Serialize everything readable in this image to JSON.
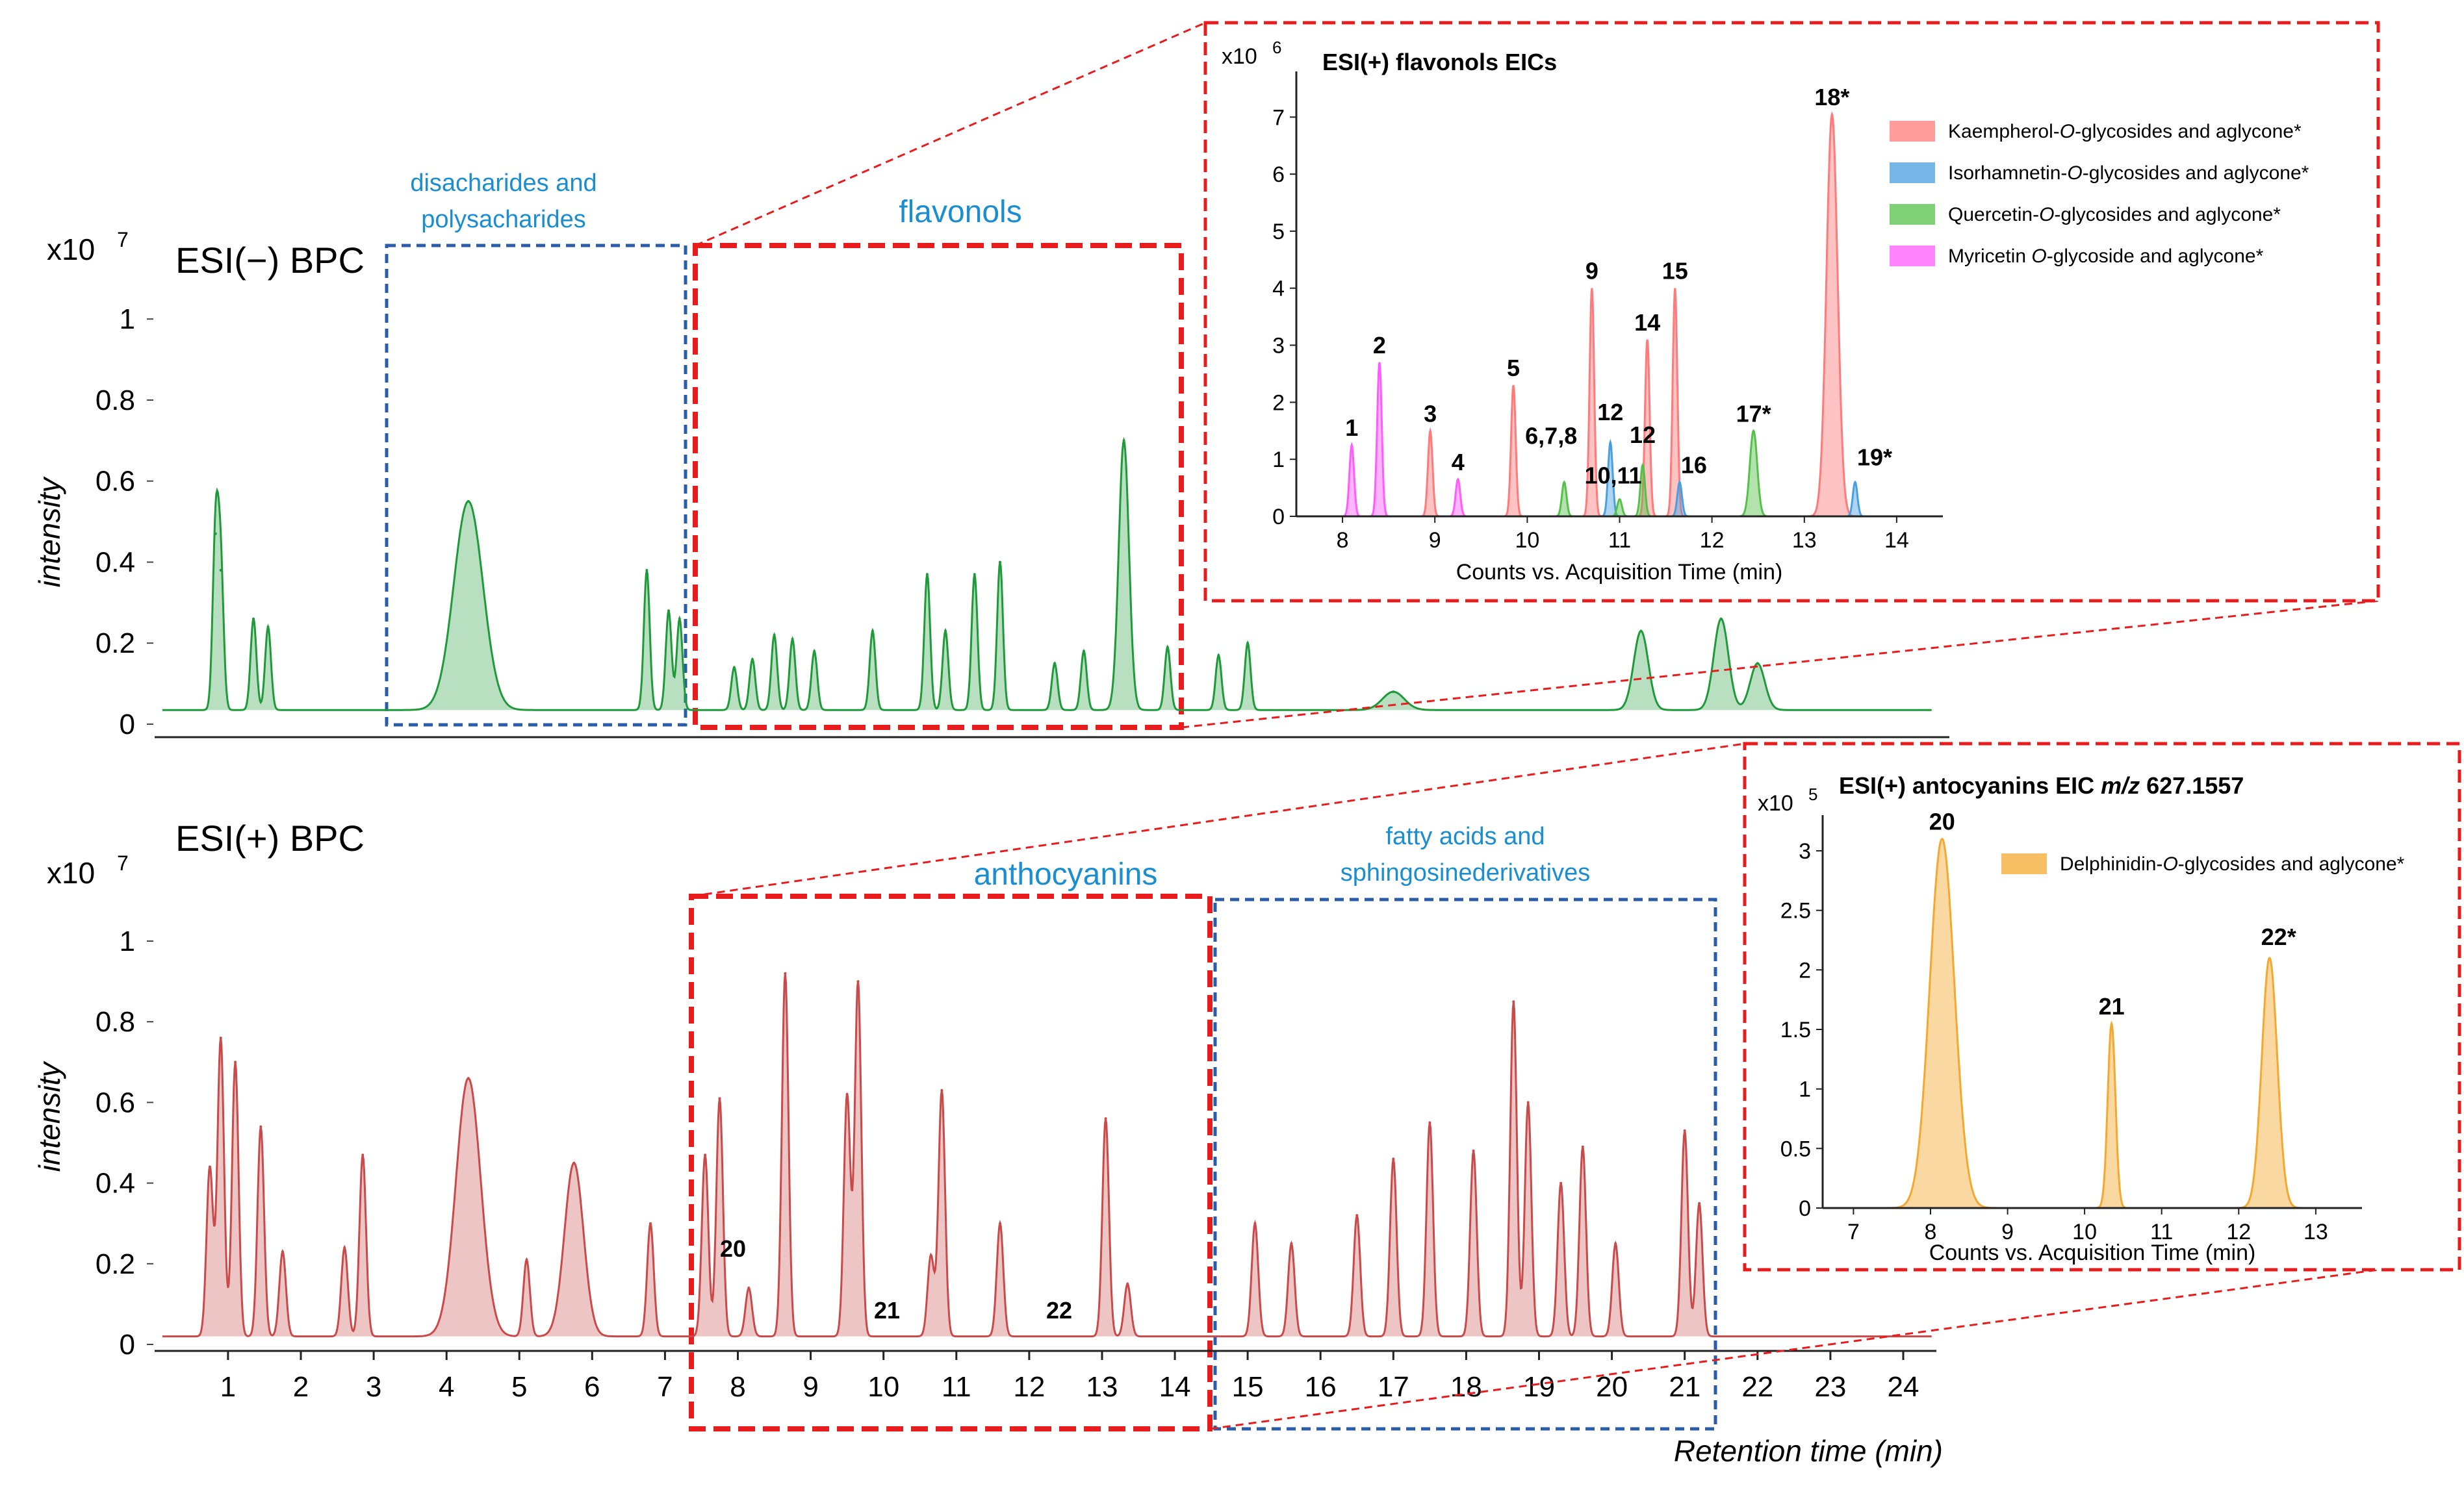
{
  "main": {
    "panel_neg_label": "ESI(−) BPC",
    "panel_pos_label": "ESI(+) BPC",
    "scale_neg": "x10",
    "scale_neg_exp": "7",
    "scale_pos": "x10",
    "scale_pos_exp": "7",
    "ylabel": "intensity",
    "xlabel": "Retention time (min)",
    "box_disacch_line1": "disacharides and",
    "box_disacch_line2": "polysacharides",
    "box_flavonols": "flavonols",
    "box_anthocyanins": "anthocyanins",
    "box_fatty_line1": "fatty acids and",
    "box_fatty_line2": "sphingosinederivatives",
    "peak_label_20": "20",
    "peak_label_21": "21",
    "peak_label_22": "22"
  },
  "chart_data": [
    {
      "type": "area",
      "title": "ESI(−) BPC",
      "ylabel": "intensity",
      "y_scale": "x10^7",
      "xlim": [
        0.1,
        24.5
      ],
      "ylim": [
        0,
        1.05
      ],
      "y_ticks": [
        "0",
        "0.2",
        "0.4",
        "0.6",
        "0.8",
        "1"
      ],
      "baseline": 0.035,
      "color": "#1f9a3a",
      "peaks": [
        {
          "x": 0.83,
          "y": 0.47
        },
        {
          "x": 0.9,
          "y": 0.38
        },
        {
          "x": 1.35,
          "y": 0.26
        },
        {
          "x": 1.55,
          "y": 0.24
        },
        {
          "x": 4.3,
          "y": 0.55
        },
        {
          "x": 6.75,
          "y": 0.38
        },
        {
          "x": 7.05,
          "y": 0.28
        },
        {
          "x": 7.2,
          "y": 0.26
        },
        {
          "x": 7.95,
          "y": 0.14
        },
        {
          "x": 8.2,
          "y": 0.16
        },
        {
          "x": 8.5,
          "y": 0.22
        },
        {
          "x": 8.75,
          "y": 0.21
        },
        {
          "x": 9.05,
          "y": 0.18
        },
        {
          "x": 9.85,
          "y": 0.23
        },
        {
          "x": 10.6,
          "y": 0.37
        },
        {
          "x": 10.85,
          "y": 0.23
        },
        {
          "x": 11.25,
          "y": 0.37
        },
        {
          "x": 11.6,
          "y": 0.4
        },
        {
          "x": 12.35,
          "y": 0.15
        },
        {
          "x": 12.75,
          "y": 0.18
        },
        {
          "x": 13.3,
          "y": 0.7
        },
        {
          "x": 13.9,
          "y": 0.19
        },
        {
          "x": 14.6,
          "y": 0.17
        },
        {
          "x": 15.0,
          "y": 0.2
        },
        {
          "x": 17.0,
          "y": 0.08
        },
        {
          "x": 20.4,
          "y": 0.23
        },
        {
          "x": 21.5,
          "y": 0.26
        },
        {
          "x": 22.0,
          "y": 0.15
        }
      ]
    },
    {
      "type": "area",
      "title": "ESI(+) BPC",
      "ylabel": "intensity",
      "xlabel": "Retention time (min)",
      "y_scale": "x10^7",
      "xlim": [
        0.1,
        24.5
      ],
      "ylim": [
        0,
        1.05
      ],
      "x_ticks": [
        1,
        2,
        3,
        4,
        5,
        6,
        7,
        8,
        9,
        10,
        11,
        12,
        13,
        14,
        15,
        16,
        17,
        18,
        19,
        20,
        21,
        22,
        23,
        24
      ],
      "y_ticks": [
        "0",
        "0.2",
        "0.4",
        "0.6",
        "0.8",
        "1"
      ],
      "baseline": 0.02,
      "color": "#c94a4a",
      "peaks": [
        {
          "x": 0.75,
          "y": 0.44
        },
        {
          "x": 0.9,
          "y": 0.76
        },
        {
          "x": 1.1,
          "y": 0.7
        },
        {
          "x": 1.45,
          "y": 0.54
        },
        {
          "x": 1.75,
          "y": 0.23
        },
        {
          "x": 2.6,
          "y": 0.24
        },
        {
          "x": 2.85,
          "y": 0.47
        },
        {
          "x": 4.3,
          "y": 0.66
        },
        {
          "x": 5.1,
          "y": 0.21
        },
        {
          "x": 5.75,
          "y": 0.45
        },
        {
          "x": 6.8,
          "y": 0.3
        },
        {
          "x": 7.55,
          "y": 0.47
        },
        {
          "x": 7.75,
          "y": 0.61
        },
        {
          "x": 8.15,
          "y": 0.14
        },
        {
          "x": 8.65,
          "y": 0.92
        },
        {
          "x": 9.5,
          "y": 0.62
        },
        {
          "x": 9.65,
          "y": 0.9
        },
        {
          "x": 10.65,
          "y": 0.22
        },
        {
          "x": 10.8,
          "y": 0.63
        },
        {
          "x": 11.6,
          "y": 0.3
        },
        {
          "x": 13.05,
          "y": 0.56
        },
        {
          "x": 13.35,
          "y": 0.15
        },
        {
          "x": 15.1,
          "y": 0.3
        },
        {
          "x": 15.6,
          "y": 0.25
        },
        {
          "x": 16.5,
          "y": 0.32
        },
        {
          "x": 17.0,
          "y": 0.46
        },
        {
          "x": 17.5,
          "y": 0.55
        },
        {
          "x": 18.1,
          "y": 0.48
        },
        {
          "x": 18.65,
          "y": 0.85
        },
        {
          "x": 18.85,
          "y": 0.6
        },
        {
          "x": 19.3,
          "y": 0.4
        },
        {
          "x": 19.6,
          "y": 0.49
        },
        {
          "x": 20.05,
          "y": 0.25
        },
        {
          "x": 21.0,
          "y": 0.53
        },
        {
          "x": 21.2,
          "y": 0.35
        }
      ]
    },
    {
      "type": "area",
      "title": "ESI(+) flavonols EICs",
      "xlabel": "Counts vs. Acquisition Time (min)",
      "y_scale": "x10^6",
      "xlim": [
        7.5,
        14.5
      ],
      "ylim": [
        0,
        7.8
      ],
      "x_ticks": [
        8,
        9,
        10,
        11,
        12,
        13,
        14
      ],
      "y_ticks": [
        0,
        1,
        2,
        3,
        4,
        5,
        6,
        7
      ],
      "series": [
        {
          "name": "Kaempherol-O-glycosides and aglycone*",
          "color": "#ff7b7b",
          "peaks": [
            {
              "x": 8.95,
              "y": 1.5,
              "label": "3"
            },
            {
              "x": 9.85,
              "y": 2.3,
              "label": "5"
            },
            {
              "x": 10.7,
              "y": 4.0,
              "label": "9"
            },
            {
              "x": 11.3,
              "y": 3.1,
              "label": "14"
            },
            {
              "x": 11.6,
              "y": 4.0,
              "label": "15"
            },
            {
              "x": 13.3,
              "y": 7.05,
              "label": "18*"
            }
          ]
        },
        {
          "name": "Isorhamnetin-O-glycosides and aglycone*",
          "color": "#4a9fe0",
          "peaks": [
            {
              "x": 10.9,
              "y": 1.3,
              "label": "12"
            },
            {
              "x": 11.65,
              "y": 0.6,
              "label": "16"
            },
            {
              "x": 13.55,
              "y": 0.6,
              "label": "19*"
            }
          ]
        },
        {
          "name": "Quercetin-O-glycosides and aglycone*",
          "color": "#55c04a",
          "peaks": [
            {
              "x": 10.4,
              "y": 0.6,
              "label": "6,7,8"
            },
            {
              "x": 11.25,
              "y": 0.9,
              "label": "12"
            },
            {
              "x": 11.0,
              "y": 0.3,
              "label": "10,11"
            },
            {
              "x": 12.45,
              "y": 1.5,
              "label": "17*"
            }
          ]
        },
        {
          "name": "Myricetin O-glycoside and aglycone*",
          "color": "#ff5cff",
          "peaks": [
            {
              "x": 8.1,
              "y": 1.25,
              "label": "1"
            },
            {
              "x": 8.4,
              "y": 2.7,
              "label": "2"
            },
            {
              "x": 9.25,
              "y": 0.65,
              "label": "4"
            }
          ]
        }
      ]
    },
    {
      "type": "area",
      "title": "ESI(+) antocyanins EIC m/z 627.1557",
      "xlabel": "Counts vs. Acquisition Time (min)",
      "y_scale": "x10^5",
      "xlim": [
        6.6,
        13.6
      ],
      "ylim": [
        0,
        3.3
      ],
      "x_ticks": [
        7,
        8,
        9,
        10,
        11,
        12,
        13
      ],
      "y_ticks": [
        "0",
        "0.5",
        "1",
        "1.5",
        "2",
        "2.5",
        "3"
      ],
      "series": [
        {
          "name": "Delphinidin-O-glycosides and aglycone*",
          "color": "#f4a830",
          "peaks": [
            {
              "x": 8.15,
              "y": 3.1,
              "label": "20"
            },
            {
              "x": 10.35,
              "y": 1.55,
              "label": "21"
            },
            {
              "x": 12.4,
              "y": 2.1,
              "label": "22*"
            }
          ]
        }
      ]
    }
  ],
  "insets": {
    "flav": {
      "title": "ESI(+) flavonols EICs",
      "scale": "x10",
      "scale_exp": "6",
      "xlabel": "Counts vs. Acquisition Time (min)",
      "legend": [
        {
          "pre": "Kaempherol-",
          "it": "O",
          "post": "-glycosides and aglycone*"
        },
        {
          "pre": "Isorhamnetin-",
          "it": "O",
          "post": "-glycosides and aglycone*"
        },
        {
          "pre": "Quercetin-",
          "it": "O",
          "post": "-glycosides and aglycone*"
        },
        {
          "pre": "Myricetin ",
          "it": "O",
          "post": "-glycoside and aglycone*"
        }
      ]
    },
    "anth": {
      "title_pre": "ESI(+) antocyanins EIC ",
      "title_it": "m/z",
      "title_post": " 627.1557",
      "scale": "x10",
      "scale_exp": "5",
      "xlabel": "Counts vs. Acquisition Time (min)",
      "legend": [
        {
          "pre": "Delphinidin-",
          "it": "O",
          "post": "-glycosides and aglycone*"
        }
      ]
    }
  }
}
